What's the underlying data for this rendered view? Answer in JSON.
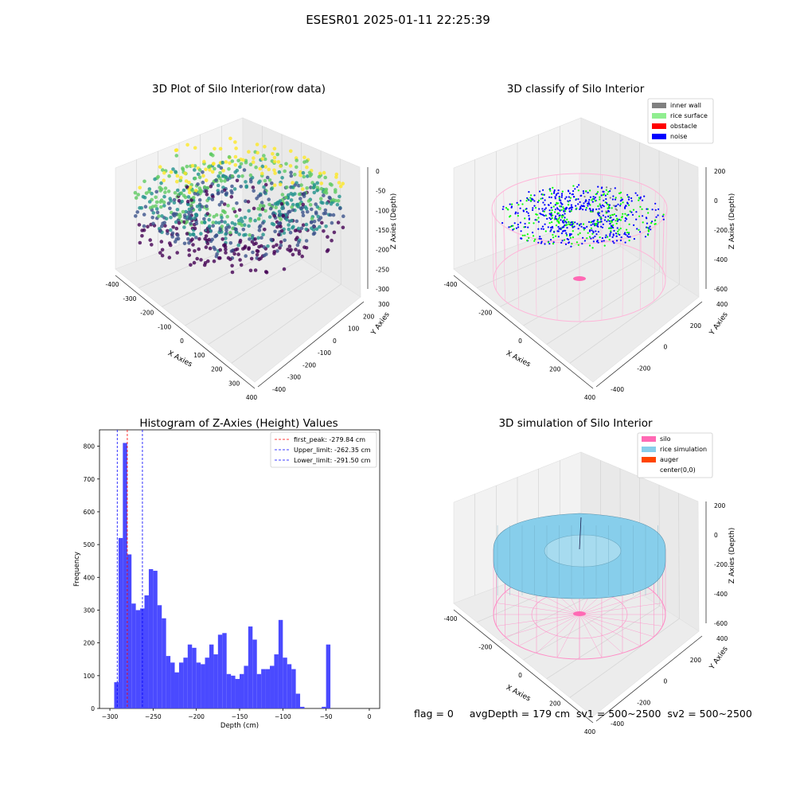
{
  "figure": {
    "suptitle": "ESESR01 2025-01-11 22:25:39",
    "footer": "flag = 0     avgDepth = 179 cm  sv1 = 500~2500  sv2 = 500~2500"
  },
  "chart_data": [
    {
      "type": "scatter3d",
      "title": "3D Plot of Silo Interior(row data)",
      "xlabel": "X Axies",
      "ylabel": "Y Axies",
      "zlabel": "Z Axies (Depth)",
      "xticks": [
        "-400",
        "-300",
        "-200",
        "-100",
        "0",
        "100",
        "200",
        "300",
        "400"
      ],
      "yticks": [
        "-400",
        "-300",
        "-200",
        "-100",
        "0",
        "100",
        "200",
        "300"
      ],
      "zticks": [
        "0",
        "-50",
        "-100",
        "-150",
        "-200",
        "-250",
        "-300"
      ],
      "colormap": [
        "#440154",
        "#3b528b",
        "#21918c",
        "#5ec962",
        "#fde725"
      ],
      "grid": true
    },
    {
      "type": "scatter3d",
      "title": "3D classify of Silo Interior",
      "xlabel": "X Axies",
      "ylabel": "Y Axies",
      "zlabel": "Z Axies (Depth)",
      "xticks": [
        "-400",
        "-200",
        "0",
        "200",
        "400"
      ],
      "yticks": [
        "-400",
        "-200",
        "0",
        "200",
        "400"
      ],
      "zticks": [
        "200",
        "0",
        "-200",
        "-400",
        "-600"
      ],
      "legend": [
        {
          "name": "inner wall",
          "color": "#808080"
        },
        {
          "name": "rice surface",
          "color": "#90ee90"
        },
        {
          "name": "obstacle",
          "color": "#ff0000"
        },
        {
          "name": "noise",
          "color": "#0000ff"
        }
      ],
      "legend_loc": "top-right",
      "silo_wire_color": "#ffb6d9",
      "grid": true
    },
    {
      "type": "bar",
      "title": "Histogram of Z-Axies (Height) Values",
      "xlabel": "Depth (cm)",
      "ylabel": "Frequency",
      "xlim": [
        -300,
        0
      ],
      "ylim": [
        0,
        850
      ],
      "xticks": [
        -300,
        -250,
        -200,
        -150,
        -100,
        -50,
        0
      ],
      "yticks": [
        0,
        100,
        200,
        300,
        400,
        500,
        600,
        700,
        800
      ],
      "bin_width": 5,
      "bins": [
        [
          -295,
          80
        ],
        [
          -290,
          520
        ],
        [
          -285,
          810
        ],
        [
          -280,
          470
        ],
        [
          -275,
          320
        ],
        [
          -270,
          300
        ],
        [
          -265,
          305
        ],
        [
          -260,
          345
        ],
        [
          -255,
          425
        ],
        [
          -250,
          420
        ],
        [
          -245,
          315
        ],
        [
          -240,
          275
        ],
        [
          -235,
          160
        ],
        [
          -230,
          140
        ],
        [
          -225,
          110
        ],
        [
          -220,
          140
        ],
        [
          -215,
          155
        ],
        [
          -210,
          195
        ],
        [
          -205,
          185
        ],
        [
          -200,
          140
        ],
        [
          -195,
          135
        ],
        [
          -190,
          155
        ],
        [
          -185,
          195
        ],
        [
          -180,
          165
        ],
        [
          -175,
          225
        ],
        [
          -170,
          230
        ],
        [
          -165,
          105
        ],
        [
          -160,
          100
        ],
        [
          -155,
          90
        ],
        [
          -150,
          105
        ],
        [
          -145,
          130
        ],
        [
          -140,
          250
        ],
        [
          -135,
          210
        ],
        [
          -130,
          105
        ],
        [
          -125,
          120
        ],
        [
          -120,
          120
        ],
        [
          -115,
          130
        ],
        [
          -110,
          165
        ],
        [
          -105,
          270
        ],
        [
          -100,
          155
        ],
        [
          -95,
          135
        ],
        [
          -90,
          120
        ],
        [
          -85,
          45
        ],
        [
          -80,
          5
        ],
        [
          -75,
          0
        ],
        [
          -70,
          0
        ],
        [
          -65,
          0
        ],
        [
          -60,
          0
        ],
        [
          -55,
          5
        ],
        [
          -50,
          195
        ]
      ],
      "bar_color": "#4a4aff",
      "vlines": [
        {
          "name": "first_peak: -279.84 cm",
          "x": -279.84,
          "color": "#ff0000"
        },
        {
          "name": "Upper_limit: -262.35 cm",
          "x": -262.35,
          "color": "#0000ff"
        },
        {
          "name": "Lower_limit: -291.50 cm",
          "x": -291.5,
          "color": "#0000ff"
        }
      ],
      "legend_loc": "top-right"
    },
    {
      "type": "surface3d",
      "title": "3D simulation of Silo Interior",
      "xlabel": "X Axies",
      "ylabel": "Y Axies",
      "zlabel": "Z Axies (Depth)",
      "xticks": [
        "-400",
        "-200",
        "0",
        "200",
        "400"
      ],
      "yticks": [
        "-400",
        "-200",
        "0",
        "200",
        "400"
      ],
      "zticks": [
        "200",
        "0",
        "-200",
        "-400",
        "-600"
      ],
      "legend": [
        {
          "name": "silo",
          "color": "#ff69b4"
        },
        {
          "name": "rice simulation",
          "color": "#87ceeb"
        },
        {
          "name": "auger",
          "color": "#ff4500"
        },
        {
          "name": "center(0,0)",
          "color": "#ffffff"
        }
      ],
      "legend_loc": "top-right",
      "surface_color": "#87ceeb",
      "silo_wire_color": "#ff8cc6",
      "grid": true
    }
  ]
}
